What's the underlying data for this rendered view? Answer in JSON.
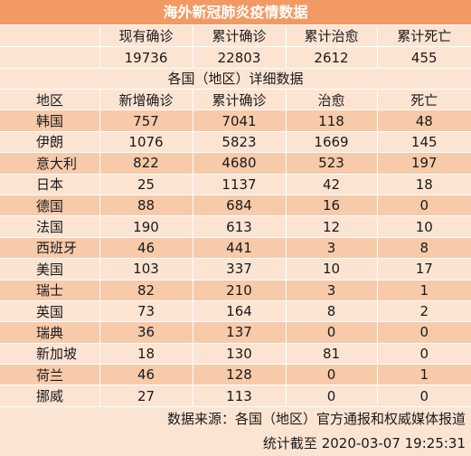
{
  "title": "海外新冠肺炎疫情数据",
  "summary": {
    "headers": [
      "现有确诊",
      "累计确诊",
      "累计治愈",
      "累计死亡"
    ],
    "values": [
      "19736",
      "22803",
      "2612",
      "455"
    ]
  },
  "detail": {
    "subtitle": "各国（地区）详细数据",
    "headers": [
      "地区",
      "新增确诊",
      "累计确诊",
      "治愈",
      "死亡"
    ],
    "rows": [
      [
        "韩国",
        "757",
        "7041",
        "118",
        "48"
      ],
      [
        "伊朗",
        "1076",
        "5823",
        "1669",
        "145"
      ],
      [
        "意大利",
        "822",
        "4680",
        "523",
        "197"
      ],
      [
        "日本",
        "25",
        "1137",
        "42",
        "18"
      ],
      [
        "德国",
        "88",
        "684",
        "16",
        "0"
      ],
      [
        "法国",
        "190",
        "613",
        "12",
        "10"
      ],
      [
        "西班牙",
        "46",
        "441",
        "3",
        "8"
      ],
      [
        "美国",
        "103",
        "337",
        "10",
        "17"
      ],
      [
        "瑞士",
        "82",
        "210",
        "3",
        "1"
      ],
      [
        "英国",
        "73",
        "164",
        "8",
        "2"
      ],
      [
        "瑞典",
        "36",
        "137",
        "0",
        "0"
      ],
      [
        "新加坡",
        "18",
        "130",
        "81",
        "0"
      ],
      [
        "荷兰",
        "46",
        "128",
        "0",
        "1"
      ],
      [
        "挪威",
        "27",
        "113",
        "0",
        "0"
      ]
    ]
  },
  "footer": {
    "source": "数据来源：各国（地区）官方通报和权威媒体报道",
    "timestamp": "统计截至 2020-03-07  19:25:31"
  },
  "colors": {
    "title_bg": "#f29a63",
    "band_dark": "#f7caa9",
    "band_light": "#fce4d3"
  }
}
